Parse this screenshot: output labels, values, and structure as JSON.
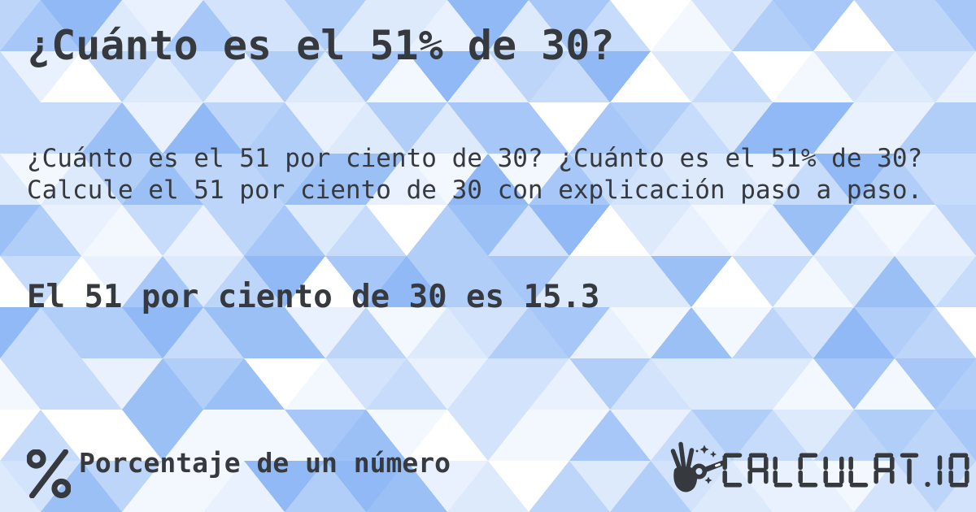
{
  "card": {
    "title": "¿Cuánto es el 51% de 30?",
    "description": "¿Cuánto es el 51 por ciento de 30? ¿Cuánto es el 51% de 30? Calcule el 51 por ciento de 30 con explicación paso a paso.",
    "result": "El 51 por ciento de 30 es 15.3"
  },
  "footer": {
    "category": {
      "icon": "percent-icon",
      "label": "Porcentaje de un número"
    },
    "brand": {
      "icon": "magic-wand-hand-icon",
      "logo_text": "CALCULAT.IO"
    }
  },
  "colors": {
    "text": "#36393d",
    "background_base": "#cbdefb",
    "pattern_palette": [
      "#ffffff",
      "#f3f8fe",
      "#e8f1fd",
      "#ddeafc",
      "#d2e3fb",
      "#c7dcfa",
      "#bcd5f9",
      "#b1cef8",
      "#a6c7f7",
      "#9bc0f6",
      "#90b9f5"
    ]
  }
}
